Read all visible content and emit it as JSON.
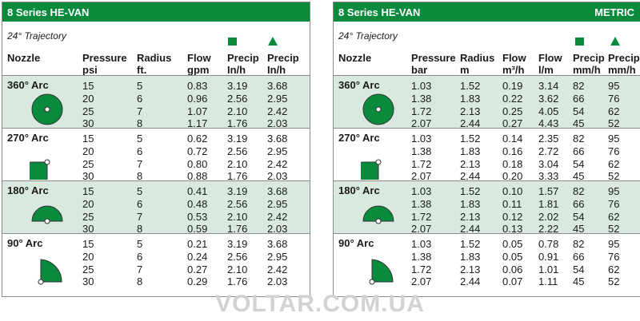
{
  "left": {
    "title": "8 Series HE-VAN",
    "trajectory": "24° Trajectory",
    "headers": {
      "nozzle": "Nozzle",
      "pressure": [
        "Pressure",
        "psi"
      ],
      "radius": [
        "Radius",
        "ft."
      ],
      "flow": [
        "Flow",
        "gpm"
      ],
      "precip_sq": [
        "Precip",
        "In/h"
      ],
      "precip_tri": [
        "Precip",
        "In/h"
      ]
    },
    "groups": [
      {
        "arc": "360° Arc",
        "rows": [
          [
            "15",
            "5",
            "0.83",
            "3.19",
            "3.68"
          ],
          [
            "20",
            "6",
            "0.96",
            "2.56",
            "2.95"
          ],
          [
            "25",
            "7",
            "1.07",
            "2.10",
            "2.42"
          ],
          [
            "30",
            "8",
            "1.17",
            "1.76",
            "2.03"
          ]
        ]
      },
      {
        "arc": "270° Arc",
        "rows": [
          [
            "15",
            "5",
            "0.62",
            "3.19",
            "3.68"
          ],
          [
            "20",
            "6",
            "0.72",
            "2.56",
            "2.95"
          ],
          [
            "25",
            "7",
            "0.80",
            "2.10",
            "2.42"
          ],
          [
            "30",
            "8",
            "0.88",
            "1.76",
            "2.03"
          ]
        ]
      },
      {
        "arc": "180° Arc",
        "rows": [
          [
            "15",
            "5",
            "0.41",
            "3.19",
            "3.68"
          ],
          [
            "20",
            "6",
            "0.48",
            "2.56",
            "2.95"
          ],
          [
            "25",
            "7",
            "0.53",
            "2.10",
            "2.42"
          ],
          [
            "30",
            "8",
            "0.59",
            "1.76",
            "2.03"
          ]
        ]
      },
      {
        "arc": "90° Arc",
        "rows": [
          [
            "15",
            "5",
            "0.21",
            "3.19",
            "3.68"
          ],
          [
            "20",
            "6",
            "0.24",
            "2.56",
            "2.95"
          ],
          [
            "25",
            "7",
            "0.27",
            "2.10",
            "2.42"
          ],
          [
            "30",
            "8",
            "0.29",
            "1.76",
            "2.03"
          ]
        ]
      }
    ]
  },
  "right": {
    "title": "8 Series HE-VAN",
    "badge": "METRIC",
    "trajectory": "24° Trajectory",
    "headers": {
      "nozzle": "Nozzle",
      "pressure": [
        "Pressure",
        "bar"
      ],
      "radius": [
        "Radius",
        "m"
      ],
      "flow_m3": [
        "Flow",
        "m³/h"
      ],
      "flow_l": [
        "Flow",
        "l/m"
      ],
      "precip_sq": [
        "Precip",
        "mm/h"
      ],
      "precip_tri": [
        "Precip",
        "mm/h"
      ]
    },
    "groups": [
      {
        "arc": "360° Arc",
        "rows": [
          [
            "1.03",
            "1.52",
            "0.19",
            "3.14",
            "82",
            "95"
          ],
          [
            "1.38",
            "1.83",
            "0.22",
            "3.62",
            "66",
            "76"
          ],
          [
            "1.72",
            "2.13",
            "0.25",
            "4.05",
            "54",
            "62"
          ],
          [
            "2.07",
            "2.44",
            "0.27",
            "4.43",
            "45",
            "52"
          ]
        ]
      },
      {
        "arc": "270° Arc",
        "rows": [
          [
            "1.03",
            "1.52",
            "0.14",
            "2.35",
            "82",
            "95"
          ],
          [
            "1.38",
            "1.83",
            "0.16",
            "2.72",
            "66",
            "76"
          ],
          [
            "1.72",
            "2.13",
            "0.18",
            "3.04",
            "54",
            "62"
          ],
          [
            "2.07",
            "2.44",
            "0.20",
            "3.33",
            "45",
            "52"
          ]
        ]
      },
      {
        "arc": "180° Arc",
        "rows": [
          [
            "1.03",
            "1.52",
            "0.10",
            "1.57",
            "82",
            "95"
          ],
          [
            "1.38",
            "1.83",
            "0.11",
            "1.81",
            "66",
            "76"
          ],
          [
            "1.72",
            "2.13",
            "0.12",
            "2.02",
            "54",
            "62"
          ],
          [
            "2.07",
            "2.44",
            "0.13",
            "2.22",
            "45",
            "52"
          ]
        ]
      },
      {
        "arc": "90° Arc",
        "rows": [
          [
            "1.03",
            "1.52",
            "0.05",
            "0.78",
            "82",
            "95"
          ],
          [
            "1.38",
            "1.83",
            "0.05",
            "0.91",
            "66",
            "76"
          ],
          [
            "1.72",
            "2.13",
            "0.06",
            "1.01",
            "54",
            "62"
          ],
          [
            "2.07",
            "2.44",
            "0.07",
            "1.11",
            "45",
            "52"
          ]
        ]
      }
    ]
  },
  "watermark": "VOLTAR.COM.UA",
  "colors": {
    "brand_green": "#0a8a3c",
    "shade": "#d9e9df",
    "border": "#8a8a8a"
  }
}
